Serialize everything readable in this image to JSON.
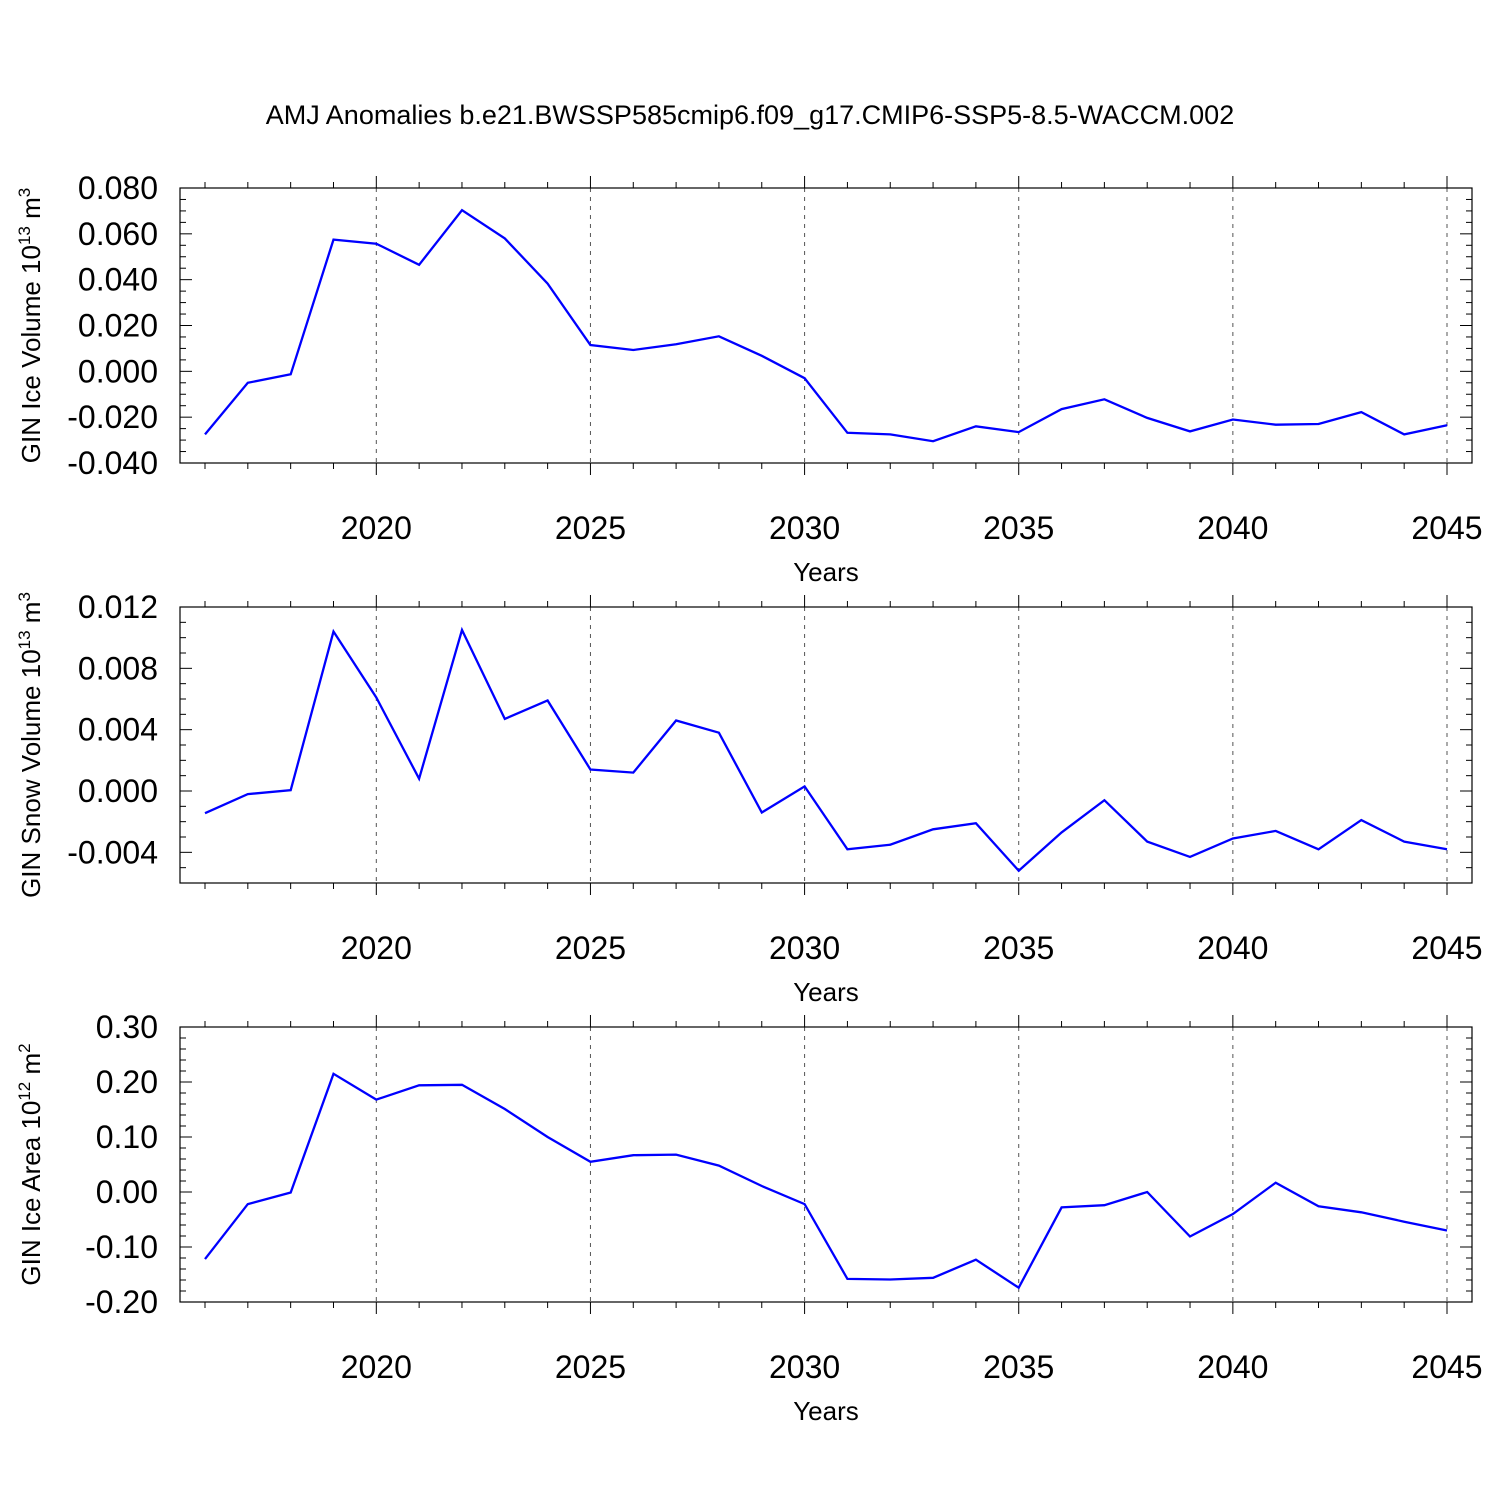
{
  "figure": {
    "title": "AMJ Anomalies b.e21.BWSSP585cmip6.f09_g17.CMIP6-SSP5-8.5-WACCM.002"
  },
  "colors": {
    "line": "#0000ff",
    "axes": "#000000",
    "grid": "#555555"
  },
  "chart_data": [
    {
      "type": "line",
      "ylabel_main": "GIN Ice Volume 10",
      "ylabel_exp": "13",
      "ylabel_unit": "m",
      "ylabel_unit_exp": "3",
      "xlabel": "Years",
      "xlim": [
        2016,
        2045
      ],
      "ylim": [
        -0.04,
        0.08
      ],
      "xticks": [
        2020,
        2025,
        2030,
        2035,
        2040,
        2045
      ],
      "yticks": [
        -0.04,
        -0.02,
        0.0,
        0.02,
        0.04,
        0.06,
        0.08
      ],
      "ytick_labels": [
        "-0.040",
        "-0.020",
        "0.000",
        "0.020",
        "0.040",
        "0.060",
        "0.080"
      ],
      "y_minor": 0.005,
      "grid": "dashed vertical at major x ticks",
      "x": [
        2016,
        2017,
        2018,
        2019,
        2020,
        2021,
        2022,
        2023,
        2024,
        2025,
        2026,
        2027,
        2028,
        2029,
        2030,
        2031,
        2032,
        2033,
        2034,
        2035,
        2036,
        2037,
        2038,
        2039,
        2040,
        2041,
        2042,
        2043,
        2044,
        2045
      ],
      "series": [
        {
          "values": [
            -0.0275,
            -0.005,
            -0.0013,
            0.0575,
            0.0557,
            0.0465,
            0.0703,
            0.058,
            0.0383,
            0.0115,
            0.0093,
            0.0118,
            0.0153,
            0.0068,
            -0.003,
            -0.0268,
            -0.0275,
            -0.0305,
            -0.024,
            -0.0265,
            -0.0165,
            -0.0122,
            -0.0203,
            -0.0262,
            -0.021,
            -0.0233,
            -0.023,
            -0.0178,
            -0.0275,
            -0.0235
          ]
        }
      ]
    },
    {
      "type": "line",
      "ylabel_main": "GIN Snow Volume 10",
      "ylabel_exp": "13",
      "ylabel_unit": "m",
      "ylabel_unit_exp": "3",
      "xlabel": "Years",
      "xlim": [
        2016,
        2045
      ],
      "ylim": [
        -0.006,
        0.012
      ],
      "xticks": [
        2020,
        2025,
        2030,
        2035,
        2040,
        2045
      ],
      "yticks": [
        -0.004,
        0.0,
        0.004,
        0.008,
        0.012
      ],
      "ytick_labels": [
        "-0.004",
        "0.000",
        "0.004",
        "0.008",
        "0.012"
      ],
      "y_minor": 0.001,
      "grid": "dashed vertical at major x ticks",
      "x": [
        2016,
        2017,
        2018,
        2019,
        2020,
        2021,
        2022,
        2023,
        2024,
        2025,
        2026,
        2027,
        2028,
        2029,
        2030,
        2031,
        2032,
        2033,
        2034,
        2035,
        2036,
        2037,
        2038,
        2039,
        2040,
        2041,
        2042,
        2043,
        2044,
        2045
      ],
      "series": [
        {
          "values": [
            -0.00145,
            -0.0002,
            5e-05,
            0.0104,
            0.0061,
            0.0008,
            0.0105,
            0.0047,
            0.0059,
            0.0014,
            0.0012,
            0.0046,
            0.0038,
            -0.0014,
            0.0003,
            -0.0038,
            -0.0035,
            -0.0025,
            -0.0021,
            -0.0052,
            -0.0027,
            -0.0006,
            -0.0033,
            -0.0043,
            -0.0031,
            -0.0026,
            -0.0038,
            -0.0019,
            -0.0033,
            -0.0038
          ]
        }
      ]
    },
    {
      "type": "line",
      "ylabel_main": "GIN Ice Area 10",
      "ylabel_exp": "12",
      "ylabel_unit": "m",
      "ylabel_unit_exp": "2",
      "xlabel": "Years",
      "xlim": [
        2016,
        2045
      ],
      "ylim": [
        -0.2,
        0.3
      ],
      "xticks": [
        2020,
        2025,
        2030,
        2035,
        2040,
        2045
      ],
      "yticks": [
        -0.2,
        -0.1,
        0.0,
        0.1,
        0.2,
        0.3
      ],
      "ytick_labels": [
        "-0.20",
        "-0.10",
        "0.00",
        "0.10",
        "0.20",
        "0.30"
      ],
      "y_minor": 0.02,
      "grid": "dashed vertical at major x ticks",
      "x": [
        2016,
        2017,
        2018,
        2019,
        2020,
        2021,
        2022,
        2023,
        2024,
        2025,
        2026,
        2027,
        2028,
        2029,
        2030,
        2031,
        2032,
        2033,
        2034,
        2035,
        2036,
        2037,
        2038,
        2039,
        2040,
        2041,
        2042,
        2043,
        2044,
        2045
      ],
      "series": [
        {
          "values": [
            -0.122,
            -0.022,
            -0.001,
            0.215,
            0.168,
            0.194,
            0.195,
            0.151,
            0.1,
            0.055,
            0.067,
            0.068,
            0.048,
            0.011,
            -0.022,
            -0.158,
            -0.159,
            -0.156,
            -0.123,
            -0.174,
            -0.028,
            -0.024,
            0.0,
            -0.081,
            -0.04,
            0.017,
            -0.026,
            -0.037,
            -0.054,
            -0.07
          ]
        }
      ]
    }
  ]
}
